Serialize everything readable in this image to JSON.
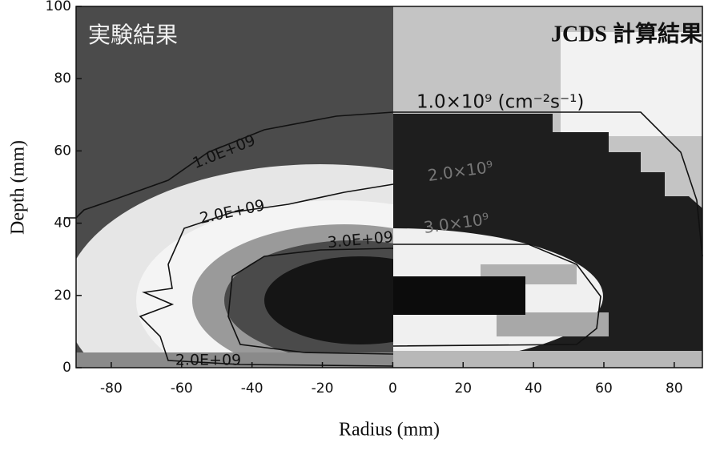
{
  "chart_data": {
    "type": "contour",
    "labels": {
      "left": "実験結果",
      "right": "JCDS 計算結果"
    },
    "xlabel": "Radius (mm)",
    "ylabel": "Depth (mm)",
    "xlim": [
      -90,
      88
    ],
    "ylim": [
      0,
      100
    ],
    "xticks": [
      -80,
      -60,
      -40,
      -20,
      0,
      20,
      40,
      60,
      80
    ],
    "yticks": [
      0,
      20,
      40,
      60,
      80,
      100
    ],
    "contour_labels": [
      "1.0E+09",
      "2.0E+09",
      "3.0E+09",
      "2.0E+09"
    ],
    "annotations": [
      "1.0×10⁹ (cm⁻²s⁻¹)",
      "2.0×10⁹",
      "3.0×10⁹"
    ]
  }
}
